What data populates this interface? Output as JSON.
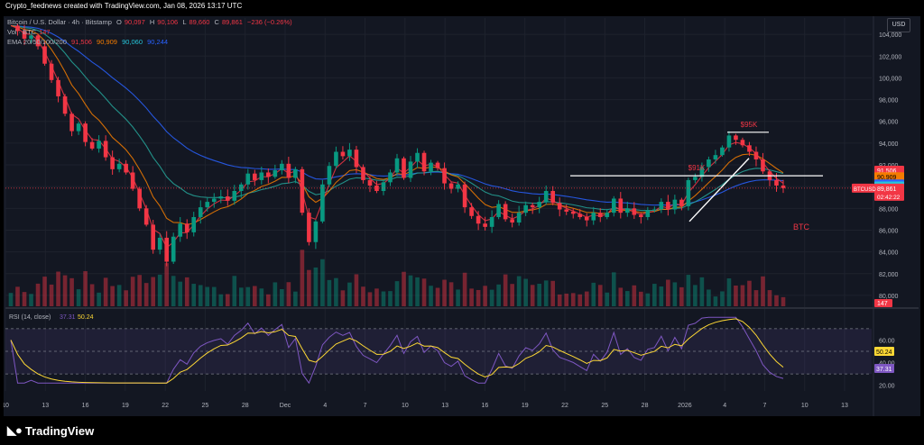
{
  "header": {
    "caption": "Crypto_feednews created with TradingView.com, Jan 08, 2026 13:17 UTC"
  },
  "legend": {
    "symbol": "Bitcoin / U.S. Dollar · 4h · Bitstamp",
    "open_label": "O",
    "open": "90,097",
    "high_label": "H",
    "high": "90,106",
    "low_label": "L",
    "low": "89,660",
    "close_label": "C",
    "close": "89,861",
    "change": "−236 (−0.26%)",
    "vol_label": "Vol · BTC",
    "vol_value": "147",
    "ema_label": "EMA 20/50/100/200",
    "ema_values": [
      "91,506",
      "90,909",
      "90,060",
      "90,244"
    ]
  },
  "currency": "USD",
  "colors": {
    "background": "#131722",
    "up": "#089981",
    "down": "#f23645",
    "ema20": "#f23645",
    "ema50": "#f57c00",
    "ema100": "#26a69a",
    "ema200": "#2962ff",
    "rsi": "#7e57c2",
    "rsi_ma": "#fdd835",
    "annotation_red": "#f23645",
    "annotation_white": "#ffffff"
  },
  "price_labels": {
    "ema20": "91,506",
    "ema50": "90,909",
    "ema200": "90,244",
    "ema100": "90,060",
    "symbol_tag": "BTCUSD",
    "last_price": "89,861",
    "countdown": "02:42:22",
    "volume": "147",
    "rsi_ma": "50.24",
    "rsi": "37.31"
  },
  "annotations": {
    "high_label": "$95K",
    "resistance_label": "$91K",
    "asset_label": "BTC"
  },
  "rsi_legend": {
    "label": "RSI (14, close)",
    "value1": "37.31",
    "value2": "50.24"
  },
  "brand": "TradingView",
  "chart_data": {
    "type": "candlestick",
    "symbol": "BTCUSD",
    "timeframe": "4h",
    "price_axis": {
      "ticks": [
        "104,000",
        "102,000",
        "100,000",
        "98,000",
        "96,000",
        "94,000",
        "92,000",
        "90,000",
        "88,000",
        "86,000",
        "84,000",
        "82,000",
        "80,000"
      ],
      "ylim": [
        79000,
        105500
      ]
    },
    "rsi_axis": {
      "ticks": [
        "60.00",
        "40.00",
        "20.00"
      ],
      "ylim": [
        15,
        85
      ],
      "bands": [
        30,
        70
      ]
    },
    "time_axis": {
      "labels": [
        "10",
        "13",
        "16",
        "19",
        "22",
        "25",
        "28",
        "Dec",
        "4",
        "7",
        "10",
        "13",
        "16",
        "19",
        "22",
        "25",
        "28",
        "2026",
        "4",
        "7",
        "10",
        "13"
      ]
    },
    "resistance_level": 91000,
    "high_level": 95000,
    "close_series": [
      104800,
      104300,
      103600,
      103900,
      102900,
      101300,
      99800,
      98300,
      96700,
      95100,
      95800,
      94100,
      93500,
      94200,
      92700,
      91600,
      92100,
      91300,
      89800,
      88000,
      86500,
      84200,
      85300,
      83100,
      85400,
      86600,
      85800,
      87200,
      88100,
      88600,
      88900,
      89100,
      88700,
      89600,
      90200,
      91200,
      90600,
      91300,
      90900,
      91500,
      92100,
      90800,
      91600,
      87600,
      84900,
      86800,
      90200,
      91900,
      93200,
      92800,
      93400,
      91800,
      90600,
      90100,
      89600,
      90400,
      91300,
      92600,
      90800,
      92300,
      93100,
      91400,
      92200,
      91700,
      90300,
      89800,
      90200,
      88100,
      87300,
      86600,
      86300,
      87200,
      88400,
      87000,
      86700,
      87600,
      88300,
      88100,
      88600,
      89600,
      88500,
      87900,
      87700,
      87500,
      87200,
      86900,
      87600,
      87200,
      87600,
      88900,
      87600,
      88000,
      87400,
      87200,
      87800,
      87900,
      88600,
      87900,
      88800,
      88200,
      90600,
      90900,
      91800,
      92500,
      92900,
      93600,
      94700,
      94300,
      93800,
      93200,
      92500,
      91400,
      90600,
      90100,
      89861
    ]
  }
}
